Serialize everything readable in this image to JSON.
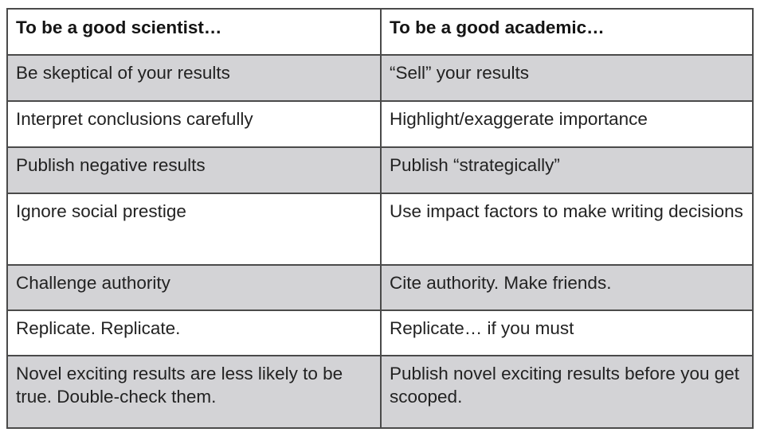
{
  "table": {
    "headers": [
      "To be a good scientist…",
      "To be a good academic…"
    ],
    "rows": [
      [
        "Be skeptical of your results",
        "“Sell” your results"
      ],
      [
        "Interpret conclusions carefully",
        "Highlight/exaggerate importance"
      ],
      [
        "Publish negative results",
        "Publish “strategically”"
      ],
      [
        "Ignore social prestige",
        "Use impact factors to make writing decisions"
      ],
      [
        "Challenge authority",
        "Cite authority. Make friends."
      ],
      [
        "Replicate. Replicate.",
        "Replicate… if you must"
      ],
      [
        "Novel exciting results are less likely to be true. Double-check them.",
        "Publish novel exciting results before you get scooped."
      ]
    ]
  },
  "colors": {
    "shaded_row": "#d3d3d6",
    "plain_row": "#ffffff",
    "border": "#4a4a4a"
  }
}
